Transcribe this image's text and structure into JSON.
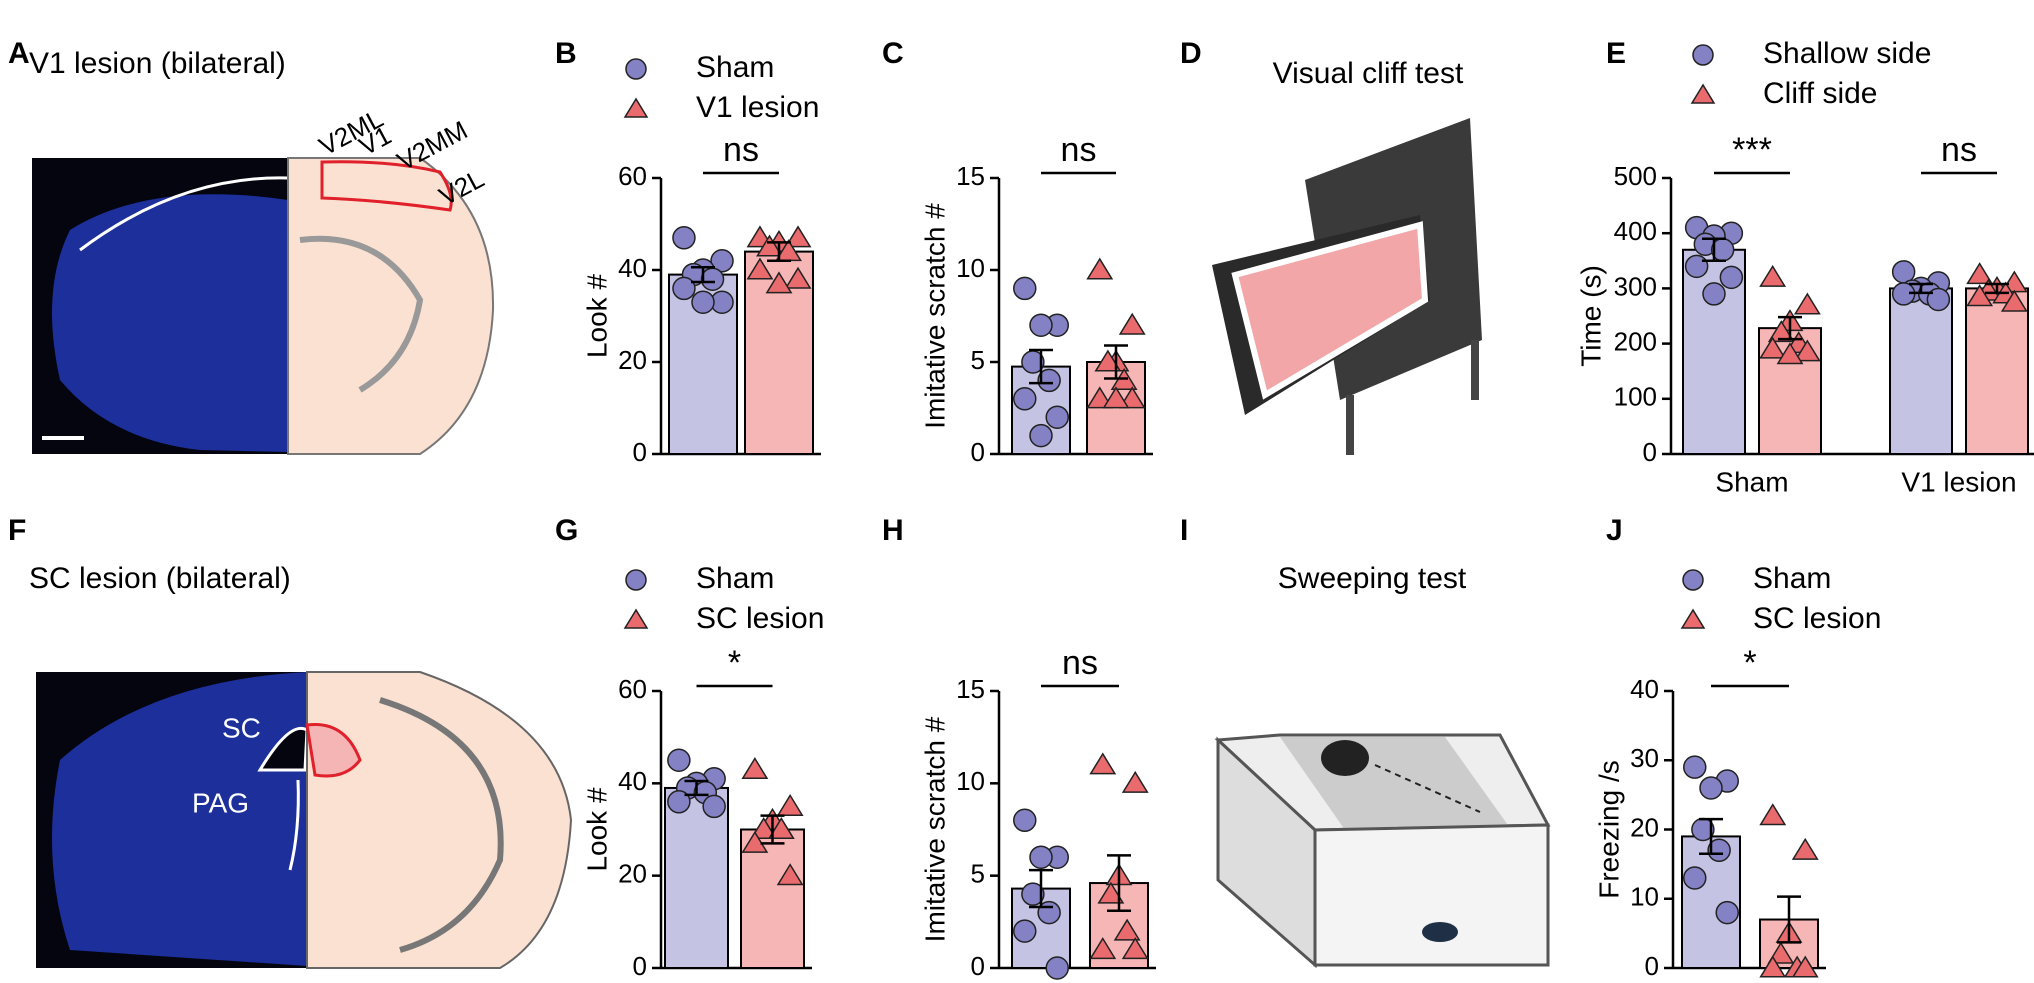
{
  "illustrations": [
    {
      "panel": "A",
      "title": "V1 lesion (bilateral)",
      "labels": [
        "V2ML",
        "V1",
        "V2MM",
        "V2L"
      ]
    },
    {
      "panel": "D",
      "title": "Visual cliff test"
    },
    {
      "panel": "F",
      "title": "SC lesion (bilateral)",
      "labels": [
        "SC",
        "PAG"
      ]
    },
    {
      "panel": "I",
      "title": "Sweeping test"
    }
  ],
  "chart_data": [
    {
      "panel": "B",
      "type": "bar",
      "ylabel": "Look #",
      "categories": [
        null
      ],
      "ylim": [
        0,
        60
      ],
      "yticks": [
        0,
        20,
        40,
        60
      ],
      "annotations": [
        "ns"
      ],
      "series": [
        {
          "name": "Sham",
          "color": "#c5c3e3",
          "marker": "circle",
          "marker_color": "#8482c4",
          "values": [
            39
          ],
          "errors": [
            1.6
          ],
          "points": [
            [
              47,
              42,
              40,
              39,
              38,
              36,
              33,
              33
            ]
          ]
        },
        {
          "name": "V1 lesion",
          "color": "#f7b6b6",
          "marker": "triangle",
          "marker_color": "#ea6b6e",
          "values": [
            44
          ],
          "errors": [
            2
          ],
          "points": [
            [
              47,
              47,
              46,
              45,
              44,
              40,
              38,
              37
            ]
          ]
        }
      ]
    },
    {
      "panel": "C",
      "type": "bar",
      "ylabel": "Imitative scratch #",
      "categories": [
        null
      ],
      "ylim": [
        0,
        15
      ],
      "yticks": [
        0,
        5,
        10,
        15
      ],
      "annotations": [
        "ns"
      ],
      "series": [
        {
          "color": "#c5c3e3",
          "marker": "circle",
          "marker_color": "#8482c4",
          "values": [
            4.75
          ],
          "errors": [
            0.9
          ],
          "points": [
            [
              9,
              7,
              7,
              5,
              4,
              3,
              2,
              1
            ]
          ]
        },
        {
          "color": "#f7b6b6",
          "marker": "triangle",
          "marker_color": "#ea6b6e",
          "values": [
            5
          ],
          "errors": [
            0.9
          ],
          "points": [
            [
              10,
              7,
              5,
              5,
              4,
              3,
              3,
              3
            ]
          ]
        }
      ]
    },
    {
      "panel": "E",
      "type": "bar",
      "ylabel": "Time (s)",
      "categories": [
        "Sham",
        "V1 lesion"
      ],
      "ylim": [
        0,
        500
      ],
      "yticks": [
        0,
        100,
        200,
        300,
        400,
        500
      ],
      "annotations": [
        "***",
        "ns"
      ],
      "series": [
        {
          "name": "Shallow side",
          "color": "#c5c3e3",
          "marker": "circle",
          "marker_color": "#8482c4",
          "values": [
            370,
            300
          ],
          "errors": [
            20,
            8
          ],
          "points": [
            [
              410,
              400,
              395,
              380,
              370,
              340,
              320,
              290
            ],
            [
              330,
              310,
              300,
              295,
              290,
              290,
              280
            ]
          ]
        },
        {
          "name": "Cliff side",
          "color": "#f7b6b6",
          "marker": "triangle",
          "marker_color": "#ea6b6e",
          "values": [
            228,
            300
          ],
          "errors": [
            20,
            8
          ],
          "points": [
            [
              320,
              270,
              240,
              220,
              200,
              190,
              185,
              180
            ],
            [
              325,
              310,
              300,
              295,
              290,
              285,
              275
            ]
          ]
        }
      ]
    },
    {
      "panel": "G",
      "type": "bar",
      "ylabel": "Look #",
      "categories": [
        null
      ],
      "ylim": [
        0,
        60
      ],
      "yticks": [
        0,
        20,
        40,
        60
      ],
      "annotations": [
        "*"
      ],
      "series": [
        {
          "name": "Sham",
          "color": "#c5c3e3",
          "marker": "circle",
          "marker_color": "#8482c4",
          "values": [
            39
          ],
          "errors": [
            1.5
          ],
          "points": [
            [
              45,
              41,
              40,
              39,
              38,
              36,
              35
            ]
          ]
        },
        {
          "name": "SC lesion",
          "color": "#f7b6b6",
          "marker": "triangle",
          "marker_color": "#ea6b6e",
          "values": [
            30
          ],
          "errors": [
            3
          ],
          "points": [
            [
              43,
              35,
              32,
              30,
              30,
              27,
              20
            ]
          ]
        }
      ]
    },
    {
      "panel": "H",
      "type": "bar",
      "ylabel": "Imitative scratch #",
      "categories": [
        null
      ],
      "ylim": [
        0,
        15
      ],
      "yticks": [
        0,
        5,
        10,
        15
      ],
      "annotations": [
        "ns"
      ],
      "series": [
        {
          "color": "#c5c3e3",
          "marker": "circle",
          "marker_color": "#8482c4",
          "values": [
            4.3
          ],
          "errors": [
            1
          ],
          "points": [
            [
              8,
              6,
              6,
              4,
              3,
              2,
              0
            ]
          ]
        },
        {
          "color": "#f7b6b6",
          "marker": "triangle",
          "marker_color": "#ea6b6e",
          "values": [
            4.6
          ],
          "errors": [
            1.5
          ],
          "points": [
            [
              11,
              10,
              5,
              4,
              2,
              1,
              1
            ]
          ]
        }
      ]
    },
    {
      "panel": "J",
      "type": "bar",
      "ylabel": "Freezing /s",
      "categories": [
        null
      ],
      "ylim": [
        0,
        40
      ],
      "yticks": [
        0,
        10,
        20,
        30,
        40
      ],
      "annotations": [
        "*"
      ],
      "series": [
        {
          "name": "Sham",
          "color": "#c5c3e3",
          "marker": "circle",
          "marker_color": "#8482c4",
          "values": [
            19
          ],
          "errors": [
            2.5
          ],
          "points": [
            [
              29,
              27,
              26,
              20,
              17,
              13,
              8
            ]
          ]
        },
        {
          "name": "SC lesion",
          "color": "#f7b6b6",
          "marker": "triangle",
          "marker_color": "#ea6b6e",
          "values": [
            7
          ],
          "errors": [
            3.3
          ],
          "points": [
            [
              22,
              17,
              5,
              2,
              0,
              0,
              0
            ]
          ]
        }
      ]
    }
  ]
}
